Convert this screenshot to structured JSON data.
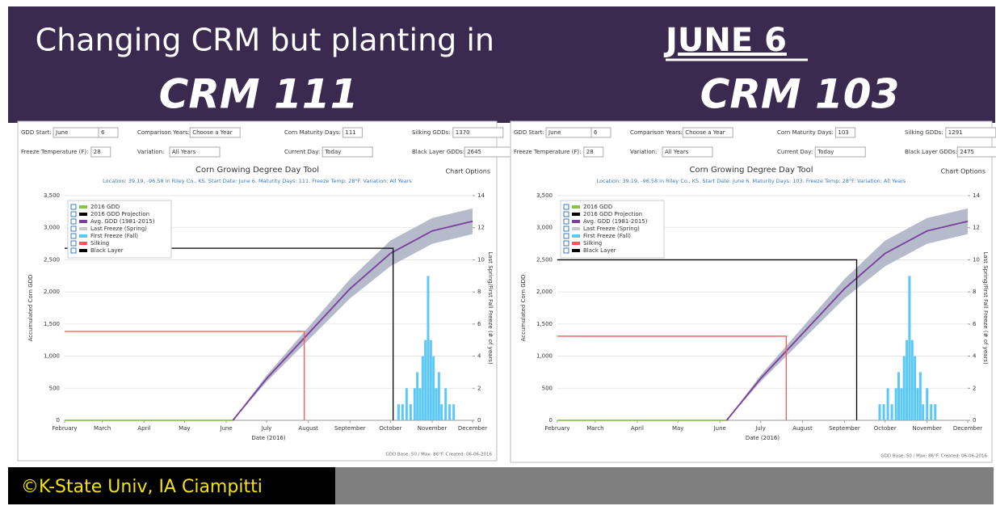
{
  "slide": {
    "title": "Changing CRM but planting in",
    "title_emphasis": "JUNE 6",
    "left_label": "CRM 111",
    "right_label": "CRM 103",
    "credit": "©K-State Univ, IA Ciampitti"
  },
  "chart_data": [
    {
      "type": "line",
      "title": "Corn Growing Degree Day Tool",
      "subtitle": "Location: 39.19, -96.58 in Riley Co., KS. Start Date: June 6. Maturity Days: 111. Freeze Temp: 28°F. Variation: All Years",
      "chart_options": "Chart Options",
      "controls": [
        {
          "label": "GDD Start:",
          "value": "June"
        },
        {
          "label": "",
          "value": "6"
        },
        {
          "label": "Comparison Years:",
          "value": "Choose a Year"
        },
        {
          "label": "Corn Maturity Days:",
          "value": "111"
        },
        {
          "label": "Silking GDDs:",
          "value": "1370"
        },
        {
          "label": "Freeze Temperature (F):",
          "value": "28"
        },
        {
          "label": "Variation:",
          "value": "All Years"
        },
        {
          "label": "Current Day:",
          "value": "Today"
        },
        {
          "label": "Black Layer GDDs:",
          "value": "2645"
        }
      ],
      "x_label": "Date (2016)",
      "y_label": "Accumulated Corn GDD",
      "y2_label": "Last Spring/First Fall Freeze (# of years)",
      "footer": "GDD Base: 50 / Max: 86°F. Created: 06-06-2016",
      "xlim": [
        32,
        335
      ],
      "xticks": [
        {
          "value": 32,
          "label": "February"
        },
        {
          "value": 60,
          "label": "March"
        },
        {
          "value": 91,
          "label": "April"
        },
        {
          "value": 121,
          "label": "May"
        },
        {
          "value": 152,
          "label": "June"
        },
        {
          "value": 182,
          "label": "July"
        },
        {
          "value": 213,
          "label": "August"
        },
        {
          "value": 244,
          "label": "September"
        },
        {
          "value": 274,
          "label": "October"
        },
        {
          "value": 305,
          "label": "November"
        },
        {
          "value": 335,
          "label": "December"
        }
      ],
      "ylim": [
        0,
        3500
      ],
      "yticks": [
        0,
        500,
        {
          "value": 1000,
          "label": "1,000"
        },
        {
          "value": 1500,
          "label": "1,500"
        },
        {
          "value": 2000,
          "label": "2,000"
        },
        {
          "value": 2500,
          "label": "2,500"
        },
        {
          "value": 3000,
          "label": "3,000"
        },
        {
          "value": 3500,
          "label": "3,500"
        }
      ],
      "y2lim": [
        0,
        14
      ],
      "y2ticks": [
        0,
        2,
        4,
        6,
        8,
        10,
        12,
        14
      ],
      "grid": true,
      "band": {
        "color": "#a9afc2",
        "x": [
          157,
          182,
          213,
          244,
          274,
          305,
          335
        ],
        "lower": [
          0,
          600,
          1250,
          1900,
          2400,
          2750,
          2900
        ],
        "upper": [
          0,
          700,
          1450,
          2200,
          2800,
          3150,
          3300
        ]
      },
      "series": [
        {
          "name": "2016 GDD",
          "color": "#8bc34a",
          "style": "solid",
          "x": [
            32,
            157
          ],
          "values": [
            0,
            0
          ]
        },
        {
          "name": "2016 GDD Projection",
          "color": "#000000",
          "style": "dashed",
          "x": [
            157,
            182,
            213,
            244,
            274,
            305,
            335
          ],
          "values": [
            0,
            650,
            1350,
            2050,
            2600,
            2950,
            3100
          ]
        },
        {
          "name": "Avg. GDD (1981-2015)",
          "color": "#7b3f9e",
          "style": "solid",
          "x": [
            157,
            182,
            213,
            244,
            274,
            305,
            335
          ],
          "values": [
            0,
            650,
            1350,
            2050,
            2600,
            2950,
            3100
          ]
        },
        {
          "name": "Last Freeze (Spring)",
          "color": "#c8c8c8",
          "style": "bar",
          "axis": "y2",
          "x": [],
          "values": []
        },
        {
          "name": "First Freeze (Fall)",
          "color": "#5bc8f5",
          "style": "bar",
          "axis": "y2",
          "x": [
            280,
            283,
            286,
            289,
            292,
            294,
            296,
            298,
            300,
            302,
            304,
            306,
            308,
            310,
            312,
            315,
            318,
            321
          ],
          "values": [
            1,
            1,
            2,
            1,
            2,
            3,
            2,
            4,
            5,
            9,
            5,
            4,
            2,
            3,
            1,
            2,
            1,
            1
          ]
        }
      ],
      "markers": [
        {
          "name": "Silking",
          "color": "#ff5555",
          "x": 210,
          "value": 1385
        },
        {
          "name": "Black Layer",
          "color": "#000000",
          "x": 276,
          "value": 2680
        }
      ]
    },
    {
      "type": "line",
      "title": "Corn Growing Degree Day Tool",
      "subtitle": "Location: 39.19, -96.58 in Riley Co., KS. Start Date: June 6. Maturity Days: 103. Freeze Temp: 28°F. Variation: All Years",
      "chart_options": "Chart Options",
      "controls": [
        {
          "label": "GDD Start:",
          "value": "June"
        },
        {
          "label": "",
          "value": "6"
        },
        {
          "label": "Comparison Years:",
          "value": "Choose a Year"
        },
        {
          "label": "Corn Maturity Days:",
          "value": "103"
        },
        {
          "label": "Silking GDDs:",
          "value": "1291"
        },
        {
          "label": "Freeze Temperature (F):",
          "value": "28"
        },
        {
          "label": "Variation:",
          "value": "All Years"
        },
        {
          "label": "Current Day:",
          "value": "Today"
        },
        {
          "label": "Black Layer GDDs:",
          "value": "2475"
        }
      ],
      "x_label": "Date (2016)",
      "y_label": "Accumulated Corn GDD",
      "y2_label": "Last Spring/First Fall Freeze (# of years)",
      "footer": "GDD Base: 50 / Max: 86°F. Created: 06-06-2016",
      "xlim": [
        32,
        335
      ],
      "xticks": [
        {
          "value": 32,
          "label": "February"
        },
        {
          "value": 60,
          "label": "March"
        },
        {
          "value": 91,
          "label": "April"
        },
        {
          "value": 121,
          "label": "May"
        },
        {
          "value": 152,
          "label": "June"
        },
        {
          "value": 182,
          "label": "July"
        },
        {
          "value": 213,
          "label": "August"
        },
        {
          "value": 244,
          "label": "September"
        },
        {
          "value": 274,
          "label": "October"
        },
        {
          "value": 305,
          "label": "November"
        },
        {
          "value": 335,
          "label": "December"
        }
      ],
      "ylim": [
        0,
        3500
      ],
      "yticks": [
        0,
        500,
        {
          "value": 1000,
          "label": "1,000"
        },
        {
          "value": 1500,
          "label": "1,500"
        },
        {
          "value": 2000,
          "label": "2,000"
        },
        {
          "value": 2500,
          "label": "2,500"
        },
        {
          "value": 3000,
          "label": "3,000"
        },
        {
          "value": 3500,
          "label": "3,500"
        }
      ],
      "y2lim": [
        0,
        14
      ],
      "y2ticks": [
        0,
        2,
        4,
        6,
        8,
        10,
        12,
        14
      ],
      "grid": true,
      "band": {
        "color": "#a9afc2",
        "x": [
          157,
          182,
          213,
          244,
          274,
          305,
          335
        ],
        "lower": [
          0,
          600,
          1250,
          1900,
          2400,
          2750,
          2900
        ],
        "upper": [
          0,
          700,
          1450,
          2200,
          2800,
          3150,
          3300
        ]
      },
      "series": [
        {
          "name": "2016 GDD",
          "color": "#8bc34a",
          "style": "solid",
          "x": [
            32,
            157
          ],
          "values": [
            0,
            0
          ]
        },
        {
          "name": "2016 GDD Projection",
          "color": "#000000",
          "style": "dashed",
          "x": [
            157,
            182,
            213,
            244,
            274,
            305,
            335
          ],
          "values": [
            0,
            650,
            1350,
            2050,
            2600,
            2950,
            3100
          ]
        },
        {
          "name": "Avg. GDD (1981-2015)",
          "color": "#7b3f9e",
          "style": "solid",
          "x": [
            157,
            182,
            213,
            244,
            274,
            305,
            335
          ],
          "values": [
            0,
            650,
            1350,
            2050,
            2600,
            2950,
            3100
          ]
        },
        {
          "name": "Last Freeze (Spring)",
          "color": "#c8c8c8",
          "style": "bar",
          "axis": "y2",
          "x": [],
          "values": []
        },
        {
          "name": "First Freeze (Fall)",
          "color": "#5bc8f5",
          "style": "bar",
          "axis": "y2",
          "x": [
            270,
            273,
            276,
            279,
            282,
            284,
            286,
            288,
            290,
            292,
            294,
            296,
            298,
            300,
            302,
            305,
            308,
            311
          ],
          "values": [
            1,
            1,
            2,
            1,
            2,
            3,
            2,
            4,
            5,
            9,
            5,
            4,
            2,
            3,
            1,
            2,
            1,
            1
          ]
        }
      ],
      "markers": [
        {
          "name": "Silking",
          "color": "#ff5555",
          "x": 201,
          "value": 1310
        },
        {
          "name": "Black Layer",
          "color": "#000000",
          "x": 253,
          "value": 2500
        }
      ]
    }
  ]
}
